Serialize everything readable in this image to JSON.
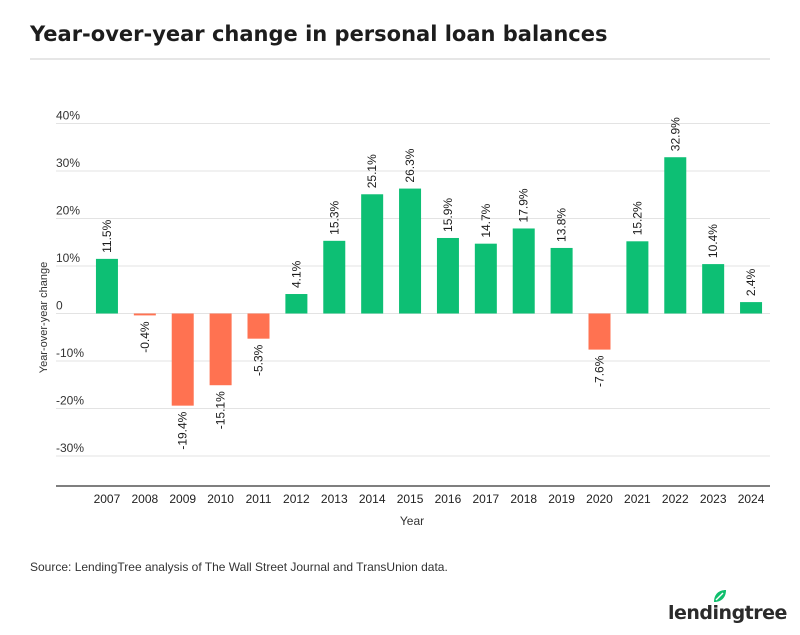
{
  "title": "Year-over-year change in personal loan balances",
  "source": "Source: LendingTree analysis of The Wall Street Journal and TransUnion data.",
  "brand": {
    "name": "lendingtree",
    "leaf_color": "#0fbf6d"
  },
  "colors": {
    "positive": "#0dbf74",
    "negative": "#ff7251",
    "grid": "#e3e3e3",
    "axis": "#333333"
  },
  "chart_data": {
    "type": "bar",
    "categories": [
      "2007",
      "2008",
      "2009",
      "2010",
      "2011",
      "2012",
      "2013",
      "2014",
      "2015",
      "2016",
      "2017",
      "2018",
      "2019",
      "2020",
      "2021",
      "2022",
      "2023",
      "2024"
    ],
    "values": [
      11.5,
      -0.4,
      -19.4,
      -15.1,
      -5.3,
      4.1,
      15.3,
      25.1,
      26.3,
      15.9,
      14.7,
      17.9,
      13.8,
      -7.6,
      15.2,
      32.9,
      10.4,
      2.4
    ],
    "labels": [
      "11.5%",
      "-0.4%",
      "-19.4%",
      "-15.1%",
      "-5.3%",
      "4.1%",
      "15.3%",
      "25.1%",
      "26.3%",
      "15.9%",
      "14.7%",
      "17.9%",
      "13.8%",
      "-7.6%",
      "15.2%",
      "32.9%",
      "10.4%",
      "2.4%"
    ],
    "yticks": [
      40,
      30,
      20,
      10,
      0,
      -10,
      -20,
      -30
    ],
    "ytick_labels": [
      "40%",
      "30%",
      "20%",
      "10%",
      "0",
      "-10%",
      "-20%",
      "-30%"
    ],
    "ylim": [
      -36,
      40
    ],
    "xlabel": "Year",
    "ylabel": "Year-over-year change",
    "grid": true
  }
}
